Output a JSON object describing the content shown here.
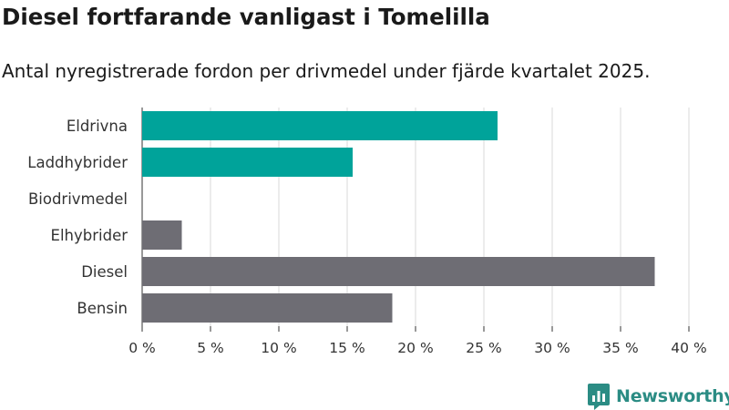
{
  "title": "Diesel fortfarande vanligast i Tomelilla",
  "subtitle": "Antal nyregistrerade fordon per drivmedel under fjärde kvartalet 2025.",
  "brand": {
    "name": "Newsworthy",
    "color": "#2b8c84"
  },
  "colors": {
    "highlight": "#00a39a",
    "neutral": "#6e6d74",
    "grid": "#d9d9d9",
    "axis": "#333333"
  },
  "chart_data": {
    "type": "bar",
    "orientation": "horizontal",
    "categories": [
      "Eldrivna",
      "Laddhybrider",
      "Biodrivmedel",
      "Elhybrider",
      "Diesel",
      "Bensin"
    ],
    "values": [
      26,
      15.4,
      0,
      2.9,
      37.5,
      18.3
    ],
    "highlighted": [
      true,
      true,
      false,
      false,
      false,
      false
    ],
    "xlim": [
      0,
      40
    ],
    "xticks": [
      0,
      5,
      10,
      15,
      20,
      25,
      30,
      35,
      40
    ],
    "xtick_labels": [
      "0 %",
      "5 %",
      "10 %",
      "15 %",
      "20 %",
      "25 %",
      "30 %",
      "35 %",
      "40 %"
    ],
    "grid": true,
    "xlabel": "",
    "ylabel": ""
  }
}
